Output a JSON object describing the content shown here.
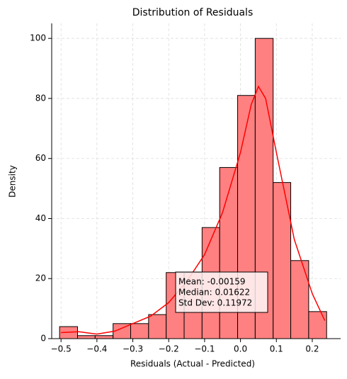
{
  "chart_data": {
    "type": "histogram",
    "title": "Distribution of Residuals",
    "xlabel": "Residuals (Actual - Predicted)",
    "ylabel": "Density",
    "bins": [
      -0.504,
      -0.454,
      -0.405,
      -0.355,
      -0.306,
      -0.256,
      -0.207,
      -0.157,
      -0.107,
      -0.058,
      -0.008,
      0.041,
      0.091,
      0.14,
      0.19,
      0.24
    ],
    "counts": [
      4,
      1,
      1,
      5,
      5,
      8,
      22,
      22,
      37,
      57,
      81,
      100,
      52,
      26,
      9
    ],
    "color": "#ff8080",
    "edgecolor": "#000000",
    "kde": {
      "color": "#ff0000",
      "x": [
        -0.5,
        -0.45,
        -0.4,
        -0.35,
        -0.3,
        -0.25,
        -0.2,
        -0.15,
        -0.1,
        -0.05,
        0.0,
        0.03,
        0.05,
        0.07,
        0.1,
        0.15,
        0.2,
        0.235
      ],
      "values": [
        2,
        2.3,
        1.5,
        2.5,
        5,
        7.5,
        12,
        19,
        28,
        42,
        62,
        78,
        84,
        80,
        62,
        33,
        15,
        6
      ]
    },
    "xlim": [
      -0.526,
      0.279
    ],
    "ylim": [
      0,
      105
    ],
    "xticks": [
      {
        "value": -0.5,
        "label": "−0.5"
      },
      {
        "value": -0.4,
        "label": "−0.4"
      },
      {
        "value": -0.3,
        "label": "−0.3"
      },
      {
        "value": -0.2,
        "label": "−0.2"
      },
      {
        "value": -0.1,
        "label": "−0.1"
      },
      {
        "value": 0,
        "label": "0.0"
      },
      0.1,
      0.2
    ],
    "yticks": [
      0,
      20,
      40,
      60,
      80,
      100
    ],
    "grid": true,
    "annotation": [
      "Mean: -0.00159",
      "Median: 0.01622",
      "Std Dev: 0.11972"
    ]
  }
}
